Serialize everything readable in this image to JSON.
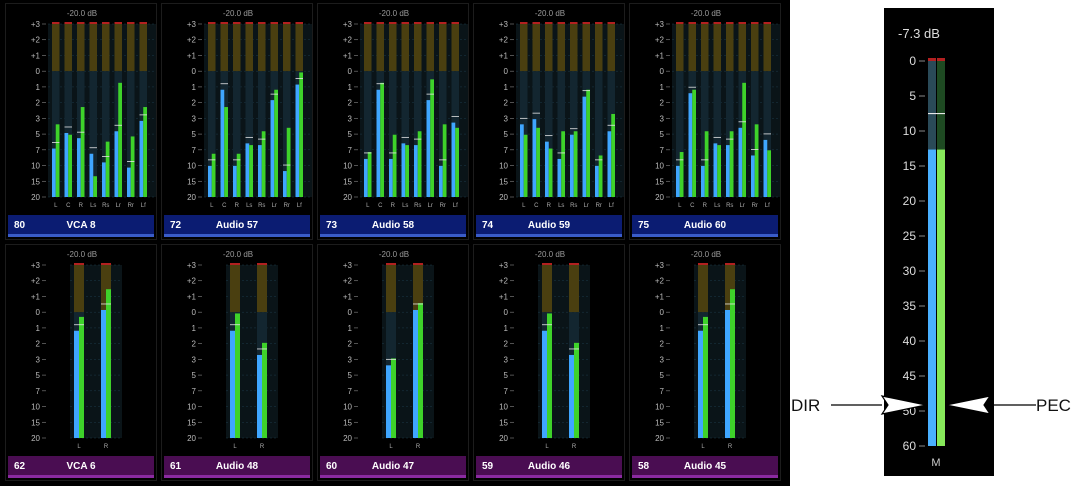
{
  "scale_label": "-20.0 dB",
  "scale_ticks": [
    "+3",
    "+2",
    "+1",
    "0",
    "1",
    "2",
    "3",
    "5",
    "7",
    "10",
    "15",
    "20"
  ],
  "multi_channel_labels": [
    "L",
    "C",
    "R",
    "Ls",
    "Rs",
    "Lr",
    "Rr",
    "Lf"
  ],
  "stereo_channel_labels": [
    "L",
    "R"
  ],
  "colors": {
    "meter_blue": "#3fa6ff",
    "meter_green": "#3ed22a",
    "label_blue": "#0b1c72",
    "label_purple": "#4a0d52"
  },
  "strips_top": [
    {
      "number": "80",
      "name": "VCA 8",
      "levels": [
        0.28,
        0.37,
        0.34,
        0.25,
        0.2,
        0.38,
        0.17,
        0.44
      ],
      "greens": [
        0.42,
        0.36,
        0.52,
        0.12,
        0.32,
        0.66,
        0.35,
        0.52
      ]
    },
    {
      "number": "72",
      "name": "Audio 57",
      "levels": [
        0.18,
        0.62,
        0.18,
        0.31,
        0.3,
        0.56,
        0.15,
        0.65
      ],
      "greens": [
        0.25,
        0.52,
        0.25,
        0.3,
        0.38,
        0.62,
        0.4,
        0.72
      ]
    },
    {
      "number": "73",
      "name": "Audio 58",
      "levels": [
        0.22,
        0.62,
        0.22,
        0.31,
        0.3,
        0.56,
        0.18,
        0.43
      ],
      "greens": [
        0.26,
        0.66,
        0.36,
        0.3,
        0.38,
        0.68,
        0.42,
        0.4
      ]
    },
    {
      "number": "74",
      "name": "Audio 59",
      "levels": [
        0.42,
        0.45,
        0.32,
        0.22,
        0.36,
        0.58,
        0.18,
        0.38
      ],
      "greens": [
        0.36,
        0.4,
        0.28,
        0.38,
        0.38,
        0.62,
        0.24,
        0.48
      ]
    },
    {
      "number": "75",
      "name": "Audio 60",
      "levels": [
        0.18,
        0.6,
        0.18,
        0.31,
        0.3,
        0.4,
        0.24,
        0.33
      ],
      "greens": [
        0.26,
        0.62,
        0.38,
        0.3,
        0.38,
        0.66,
        0.42,
        0.27
      ]
    }
  ],
  "strips_bottom": [
    {
      "number": "62",
      "name": "VCA 6",
      "levels": [
        0.62,
        0.74
      ],
      "greens": [
        0.7,
        0.86
      ]
    },
    {
      "number": "61",
      "name": "Audio 48",
      "levels": [
        0.62,
        0.48
      ],
      "greens": [
        0.72,
        0.55
      ]
    },
    {
      "number": "60",
      "name": "Audio 47",
      "levels": [
        0.42,
        0.74
      ],
      "greens": [
        0.46,
        0.78
      ]
    },
    {
      "number": "59",
      "name": "Audio 46",
      "levels": [
        0.62,
        0.48
      ],
      "greens": [
        0.72,
        0.55
      ]
    },
    {
      "number": "58",
      "name": "Audio 45",
      "levels": [
        0.62,
        0.74
      ],
      "greens": [
        0.7,
        0.86
      ]
    }
  ],
  "big_meter": {
    "readout": "-7.3 dB",
    "ticks": [
      "0",
      "5",
      "10",
      "15",
      "20",
      "25",
      "30",
      "35",
      "40",
      "45",
      "50",
      "60"
    ],
    "channel_label": "M",
    "dir_level": 0.77,
    "pec_level": 0.77
  },
  "callouts": {
    "left": "DIR",
    "right": "PEC"
  }
}
